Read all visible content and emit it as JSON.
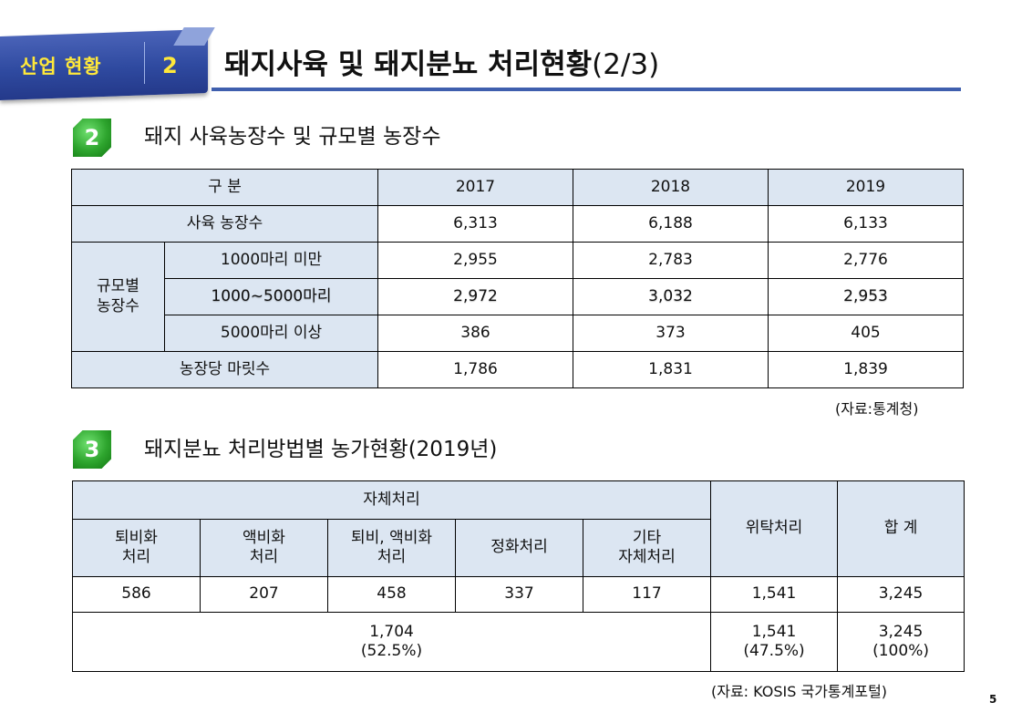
{
  "header": {
    "section_label": "산업 현황",
    "section_number": "2",
    "title": "돼지사육 및 돼지분뇨 처리현황",
    "title_suffix": "(2/3)"
  },
  "section2": {
    "badge": "2",
    "title": "돼지 사육농장수 및 규모별 농장수",
    "table": {
      "header_label": "구 분",
      "years": [
        "2017",
        "2018",
        "2019"
      ],
      "rows": {
        "farms_label": "사육 농장수",
        "farms": [
          "6,313",
          "6,188",
          "6,133"
        ],
        "size_group_label": "규모별\n농장수",
        "under1000_label": "1000마리 미만",
        "under1000": [
          "2,955",
          "2,783",
          "2,776"
        ],
        "mid_label": "1000~5000마리",
        "mid": [
          "2,972",
          "3,032",
          "2,953"
        ],
        "over5000_label": "5000마리 이상",
        "over5000": [
          "386",
          "373",
          "405"
        ],
        "per_farm_label": "농장당 마릿수",
        "per_farm": [
          "1,786",
          "1,831",
          "1,839"
        ]
      }
    },
    "source": "(자료:통계청)"
  },
  "section3": {
    "badge": "3",
    "title": "돼지분뇨 처리방법별 농가현황(2019년)",
    "table": {
      "self_label": "자체처리",
      "consign_label": "위탁처리",
      "total_label": "합 계",
      "sub_headers": [
        "퇴비화\n처리",
        "액비화\n처리",
        "퇴비, 액비화\n처리",
        "정화처리",
        "기타\n자체처리"
      ],
      "values": [
        "586",
        "207",
        "458",
        "337",
        "117",
        "1,541",
        "3,245"
      ],
      "self_sum": "1,704\n(52.5%)",
      "consign_sum": "1,541\n(47.5%)",
      "total_sum": "3,245\n(100%)"
    },
    "source": "(자료: KOSIS 국가통계포털)"
  },
  "page_number": "5"
}
